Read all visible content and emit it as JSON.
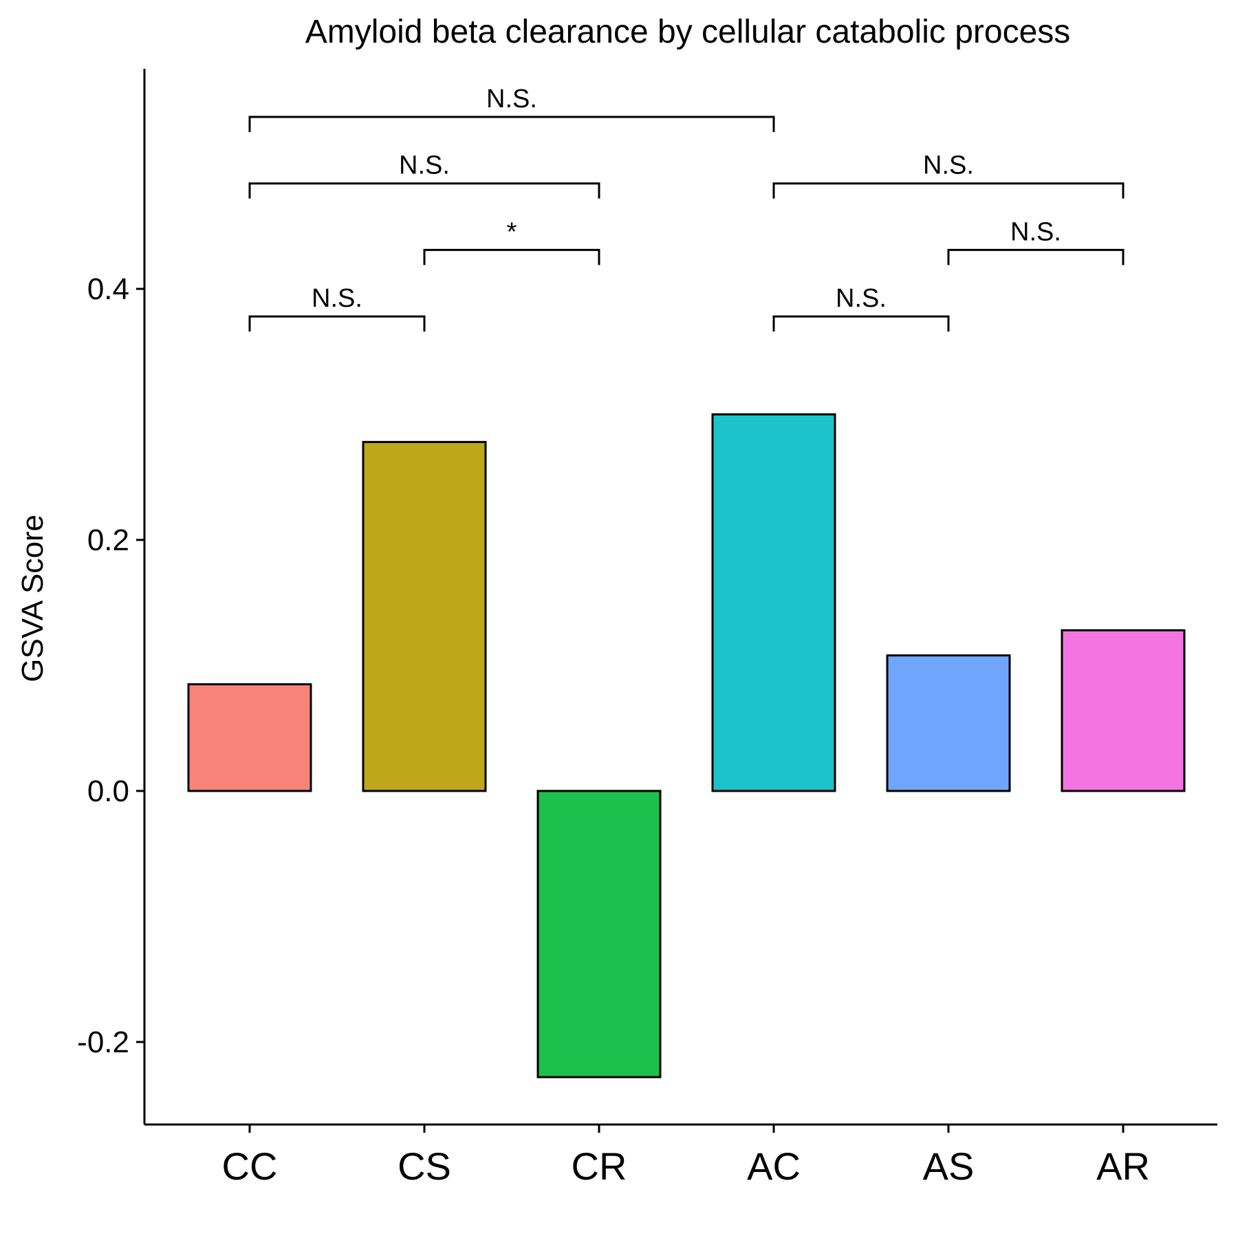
{
  "chart_data": {
    "type": "bar",
    "title": "Amyloid beta clearance by cellular catabolic process",
    "xlabel": "",
    "ylabel": "GSVA Score",
    "categories": [
      "CC",
      "CS",
      "CR",
      "AC",
      "AS",
      "AR"
    ],
    "values": [
      0.085,
      0.278,
      -0.228,
      0.3,
      0.108,
      0.128
    ],
    "colors": [
      "#F8837B",
      "#BEA71A",
      "#1BC04D",
      "#1CC3CA",
      "#70A5FD",
      "#F474E2"
    ],
    "ylim": [
      -0.265,
      0.555
    ],
    "yticks": [
      -0.2,
      0.0,
      0.2,
      0.4
    ],
    "ytick_labels": [
      "-0.2",
      "0.0",
      "0.2",
      "0.4"
    ],
    "grid": false,
    "legend": "none",
    "comparisons": [
      {
        "from": "CC",
        "to": "CS",
        "label": "N.S.",
        "y": 0.378
      },
      {
        "from": "CS",
        "to": "CR",
        "label": "*",
        "y": 0.431
      },
      {
        "from": "CC",
        "to": "CR",
        "label": "N.S.",
        "y": 0.484
      },
      {
        "from": "CC",
        "to": "AC",
        "label": "N.S.",
        "y": 0.537
      },
      {
        "from": "AC",
        "to": "AS",
        "label": "N.S.",
        "y": 0.378
      },
      {
        "from": "AS",
        "to": "AR",
        "label": "N.S.",
        "y": 0.431
      },
      {
        "from": "AC",
        "to": "AR",
        "label": "N.S.",
        "y": 0.484
      }
    ]
  }
}
